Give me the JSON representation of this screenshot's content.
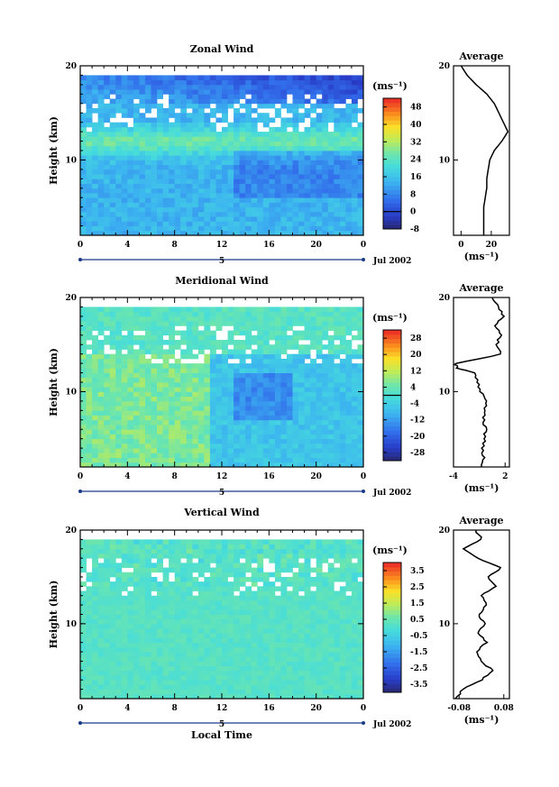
{
  "chart_data": [
    {
      "type": "heatmap",
      "title": "Zonal Wind",
      "ylabel": "Height (km)",
      "xlabel": "",
      "xticks": [
        "0",
        "4",
        "8",
        "12",
        "16",
        "20",
        "0"
      ],
      "yticks": [
        "10",
        "20"
      ],
      "ylim": [
        2,
        20
      ],
      "xlim": [
        0,
        24
      ],
      "date_label": "Jul 2002",
      "day_label": "5",
      "colorbar": {
        "unit": "(ms⁻¹)",
        "ticks": [
          "48",
          "40",
          "32",
          "24",
          "16",
          "8",
          "0",
          "-8"
        ],
        "range": [
          -8,
          52
        ],
        "zero_line": 0
      },
      "profile": {
        "title": "Average",
        "xticks": [
          "0",
          "20"
        ],
        "xlim": [
          -5,
          32
        ],
        "unit": "(ms⁻¹)",
        "heights": [
          2,
          3,
          4,
          5,
          6,
          7,
          8,
          9,
          10,
          11,
          12,
          13,
          14,
          15,
          16,
          17,
          18,
          19,
          20
        ],
        "values": [
          15,
          15,
          15,
          15,
          16,
          17,
          17,
          18,
          19,
          22,
          27,
          31,
          28,
          25,
          22,
          17,
          10,
          4,
          0
        ]
      }
    },
    {
      "type": "heatmap",
      "title": "Meridional Wind",
      "ylabel": "Height (km)",
      "xlabel": "",
      "xticks": [
        "0",
        "4",
        "8",
        "12",
        "16",
        "20",
        "0"
      ],
      "yticks": [
        "10",
        "20"
      ],
      "ylim": [
        2,
        20
      ],
      "xlim": [
        0,
        24
      ],
      "date_label": "Jul 2002",
      "day_label": "5",
      "colorbar": {
        "unit": "(ms⁻¹)",
        "ticks": [
          "28",
          "20",
          "12",
          "4",
          "-4",
          "-12",
          "-20",
          "-28"
        ],
        "range": [
          -32,
          32
        ],
        "zero_line": 0
      },
      "profile": {
        "title": "Average",
        "xticks": [
          "-4",
          "2"
        ],
        "xlim": [
          -4,
          2.5
        ],
        "unit": "(ms⁻¹)",
        "heights": [
          2,
          3,
          4,
          5,
          6,
          7,
          8,
          9,
          10,
          11,
          12,
          12.5,
          13,
          14,
          15,
          16,
          17,
          18,
          19,
          20
        ],
        "values": [
          -0.8,
          -0.5,
          -0.6,
          -0.4,
          -0.3,
          -0.5,
          -0.3,
          -0.2,
          -0.8,
          -1.2,
          -1.5,
          -3.6,
          -3.8,
          1.6,
          1.0,
          1.5,
          0.9,
          1.8,
          1.2,
          0.5
        ]
      }
    },
    {
      "type": "heatmap",
      "title": "Vertical Wind",
      "ylabel": "Height (km)",
      "xlabel": "Local Time",
      "xticks": [
        "0",
        "4",
        "8",
        "12",
        "16",
        "20",
        "0"
      ],
      "yticks": [
        "10",
        "20"
      ],
      "ylim": [
        2,
        20
      ],
      "xlim": [
        0,
        24
      ],
      "date_label": "Jul 2002",
      "day_label": "5",
      "colorbar": {
        "unit": "(ms⁻¹)",
        "ticks": [
          "3.5",
          "2.5",
          "1.5",
          "0.5",
          "-0.5",
          "-1.5",
          "-2.5",
          "-3.5"
        ],
        "range": [
          -4,
          4
        ],
        "zero_line": null
      },
      "profile": {
        "title": "Average",
        "xticks": [
          "-0.08",
          "0.08"
        ],
        "xlim": [
          -0.1,
          0.1
        ],
        "unit": "(ms⁻¹)",
        "heights": [
          2,
          3,
          4,
          5,
          6,
          7,
          8,
          9,
          10,
          11,
          12,
          13,
          14,
          15,
          16,
          17,
          18,
          19,
          20
        ],
        "values": [
          -0.09,
          -0.07,
          0.0,
          0.04,
          0.0,
          -0.02,
          0.02,
          -0.01,
          0.01,
          -0.01,
          0.02,
          0.0,
          0.05,
          0.02,
          0.07,
          -0.01,
          -0.06,
          0.0,
          -0.02
        ]
      }
    }
  ]
}
